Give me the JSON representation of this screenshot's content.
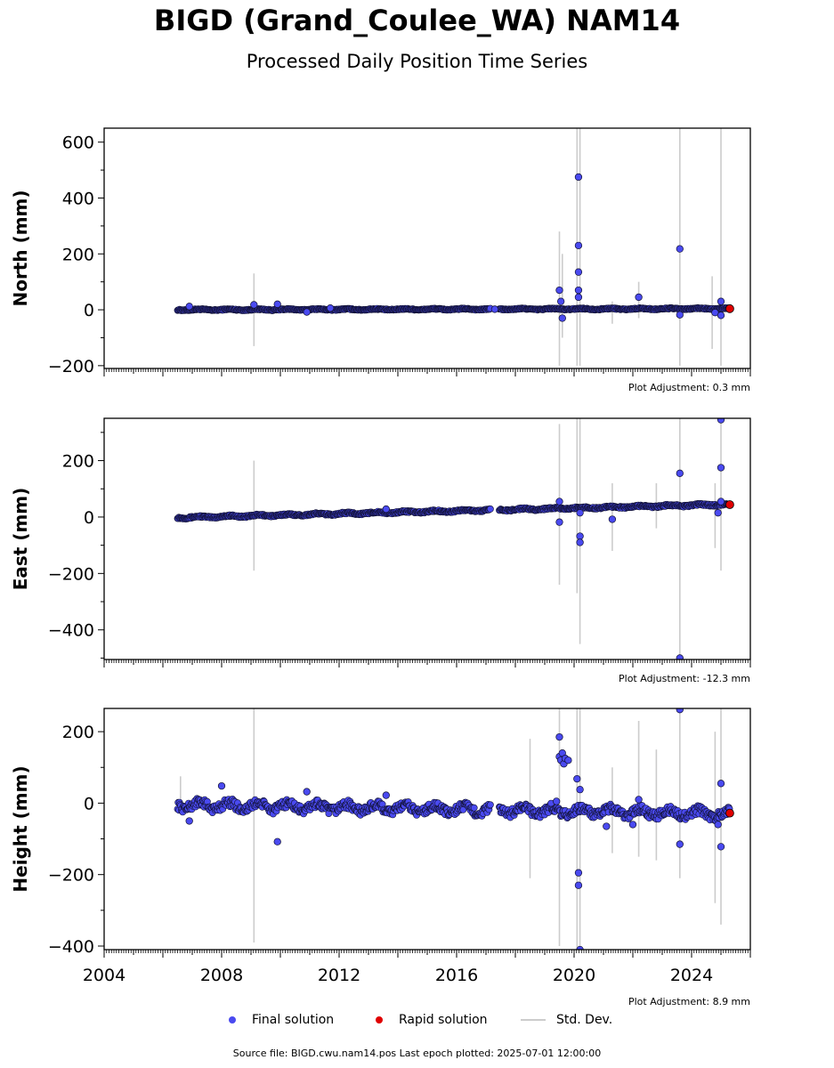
{
  "title": "BIGD (Grand_Coulee_WA) NAM14",
  "subtitle": "Processed Daily Position Time Series",
  "footer": "Source file: BIGD.cwu.nam14.pos  Last epoch plotted: 2025-07-01 12:00:00",
  "legend": [
    {
      "label": "Final solution",
      "color": "#4a4af0"
    },
    {
      "label": "Rapid solution",
      "color": "#e00000"
    },
    {
      "label": "Std. Dev.",
      "color": "#cccccc"
    }
  ],
  "chart_data": [
    {
      "type": "scatter",
      "ylabel": "North (mm)",
      "xlim": [
        2004,
        2026
      ],
      "ylim": [
        -210,
        650
      ],
      "yticks": [
        -200,
        0,
        200,
        400,
        600
      ],
      "xticks": [],
      "adjustment": "Plot Adjustment: 0.3 mm",
      "trend": [
        [
          2006.5,
          0
        ],
        [
          2025.3,
          4
        ]
      ],
      "noise": 2,
      "outliers": [
        [
          2006.9,
          12
        ],
        [
          2009.1,
          18
        ],
        [
          2009.9,
          20
        ],
        [
          2010.9,
          -8
        ],
        [
          2011.7,
          6
        ],
        [
          2017.3,
          2
        ],
        [
          2019.5,
          70
        ],
        [
          2019.55,
          30
        ],
        [
          2019.6,
          -30
        ],
        [
          2020.15,
          475
        ],
        [
          2020.15,
          230
        ],
        [
          2020.15,
          135
        ],
        [
          2020.15,
          70
        ],
        [
          2020.15,
          45
        ],
        [
          2022.2,
          45
        ],
        [
          2023.6,
          218
        ],
        [
          2023.6,
          -18
        ],
        [
          2024.8,
          -10
        ],
        [
          2025.0,
          30
        ],
        [
          2025.0,
          -20
        ]
      ],
      "errorbars": [
        [
          2009.1,
          -130,
          130
        ],
        [
          2019.5,
          -200,
          280
        ],
        [
          2019.6,
          -100,
          200
        ],
        [
          2020.1,
          -200,
          650
        ],
        [
          2020.2,
          -200,
          650
        ],
        [
          2021.3,
          -50,
          30
        ],
        [
          2022.2,
          -30,
          100
        ],
        [
          2023.6,
          -200,
          650
        ],
        [
          2024.7,
          -140,
          120
        ],
        [
          2025.0,
          -200,
          650
        ]
      ],
      "rapid": [
        [
          2025.3,
          4
        ]
      ]
    },
    {
      "type": "scatter",
      "ylabel": "East (mm)",
      "xlim": [
        2004,
        2026
      ],
      "ylim": [
        -505,
        350
      ],
      "yticks": [
        -400,
        -200,
        0,
        200
      ],
      "xticks": [],
      "adjustment": "Plot Adjustment: -12.3 mm",
      "trend": [
        [
          2006.5,
          -2
        ],
        [
          2025.3,
          45
        ]
      ],
      "noise": 3,
      "outliers": [
        [
          2013.6,
          28
        ],
        [
          2019.5,
          55
        ],
        [
          2019.5,
          -18
        ],
        [
          2020.2,
          -68
        ],
        [
          2020.2,
          -90
        ],
        [
          2020.2,
          15
        ],
        [
          2021.3,
          -8
        ],
        [
          2023.6,
          155
        ],
        [
          2023.6,
          -500
        ],
        [
          2024.9,
          15
        ],
        [
          2025.0,
          345
        ],
        [
          2025.0,
          175
        ],
        [
          2025.0,
          55
        ]
      ],
      "errorbars": [
        [
          2009.1,
          -190,
          200
        ],
        [
          2019.5,
          -240,
          330
        ],
        [
          2020.1,
          -270,
          350
        ],
        [
          2020.2,
          -450,
          350
        ],
        [
          2021.3,
          -120,
          120
        ],
        [
          2022.8,
          -40,
          120
        ],
        [
          2023.6,
          -500,
          350
        ],
        [
          2024.8,
          -110,
          120
        ],
        [
          2025.0,
          -190,
          350
        ]
      ],
      "rapid": [
        [
          2025.3,
          44
        ]
      ]
    },
    {
      "type": "scatter",
      "ylabel": "Height (mm)",
      "xlim": [
        2004,
        2026
      ],
      "ylim": [
        -410,
        265
      ],
      "yticks": [
        -400,
        -200,
        0,
        200
      ],
      "xticks": [
        2004,
        2008,
        2012,
        2016,
        2020,
        2024
      ],
      "adjustment": "Plot Adjustment: 8.9 mm",
      "trend": [
        [
          2006.5,
          -5
        ],
        [
          2025.3,
          -30
        ]
      ],
      "noise": 12,
      "outliers": [
        [
          2006.9,
          -50
        ],
        [
          2008.0,
          48
        ],
        [
          2009.9,
          -108
        ],
        [
          2010.9,
          32
        ],
        [
          2013.6,
          22
        ],
        [
          2019.4,
          5
        ],
        [
          2019.5,
          185
        ],
        [
          2019.5,
          130
        ],
        [
          2019.55,
          120
        ],
        [
          2019.6,
          140
        ],
        [
          2019.65,
          110
        ],
        [
          2019.7,
          125
        ],
        [
          2019.8,
          120
        ],
        [
          2020.1,
          68
        ],
        [
          2020.2,
          38
        ],
        [
          2020.15,
          -195
        ],
        [
          2020.15,
          -230
        ],
        [
          2020.2,
          -410
        ],
        [
          2021.1,
          -65
        ],
        [
          2022.0,
          -60
        ],
        [
          2022.2,
          10
        ],
        [
          2023.6,
          262
        ],
        [
          2023.6,
          -115
        ],
        [
          2024.9,
          -60
        ],
        [
          2025.0,
          55
        ],
        [
          2025.0,
          -122
        ]
      ],
      "errorbars": [
        [
          2006.6,
          -30,
          75
        ],
        [
          2009.1,
          -390,
          265
        ],
        [
          2018.5,
          -210,
          180
        ],
        [
          2019.5,
          -400,
          265
        ],
        [
          2020.1,
          -420,
          265
        ],
        [
          2020.2,
          -420,
          265
        ],
        [
          2021.3,
          -140,
          100
        ],
        [
          2022.2,
          -150,
          230
        ],
        [
          2022.8,
          -160,
          150
        ],
        [
          2023.6,
          -210,
          265
        ],
        [
          2024.8,
          -280,
          200
        ],
        [
          2025.0,
          -340,
          265
        ]
      ],
      "rapid": [
        [
          2025.3,
          -28
        ]
      ]
    }
  ]
}
